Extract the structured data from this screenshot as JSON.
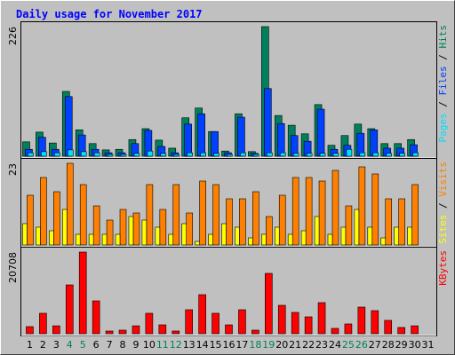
{
  "legend_separator": " / ",
  "chart_data": [
    {
      "type": "bar",
      "title": "Daily usage for November 2017",
      "ylim": [
        0,
        226
      ],
      "yticks": [
        226
      ],
      "series": [
        {
          "name": "Hits",
          "color": "#00805c",
          "values": [
            25,
            42,
            23,
            113,
            46,
            22,
            11,
            12,
            29,
            48,
            28,
            14,
            67,
            84,
            43,
            9,
            74,
            8,
            226,
            71,
            54,
            39,
            90,
            19,
            36,
            56,
            48,
            22,
            22,
            29,
            null
          ]
        },
        {
          "name": "Files",
          "color": "#0040ff",
          "values": [
            12,
            33,
            12,
            104,
            37,
            12,
            6,
            6,
            22,
            45,
            17,
            6,
            56,
            74,
            43,
            6,
            68,
            5,
            118,
            57,
            36,
            26,
            82,
            12,
            19,
            40,
            46,
            14,
            14,
            20,
            null
          ]
        },
        {
          "name": "Pages",
          "color": "#00e0ff",
          "values": [
            6,
            8,
            6,
            11,
            8,
            6,
            3,
            3,
            5,
            9,
            5,
            3,
            6,
            6,
            5,
            3,
            6,
            3,
            6,
            6,
            5,
            5,
            5,
            5,
            12,
            6,
            6,
            5,
            5,
            6,
            null
          ]
        }
      ]
    },
    {
      "type": "bar",
      "ylim": [
        0,
        23
      ],
      "yticks": [
        23
      ],
      "series": [
        {
          "name": "Visits",
          "color": "#ff8000",
          "values": [
            14,
            19,
            15,
            23,
            17,
            11,
            7,
            10,
            9,
            17,
            10,
            17,
            9,
            18,
            17,
            13,
            13,
            15,
            8,
            14,
            19,
            19,
            18,
            21,
            11,
            22,
            20,
            13,
            13,
            17,
            null
          ]
        },
        {
          "name": "Sites",
          "color": "#ffff00",
          "values": [
            6,
            5,
            4,
            10,
            3,
            3,
            3,
            3,
            8,
            7,
            5,
            3,
            6,
            1,
            3,
            6,
            5,
            2,
            3,
            5,
            3,
            4,
            8,
            3,
            5,
            10,
            5,
            2,
            5,
            5,
            null
          ]
        }
      ]
    },
    {
      "type": "bar",
      "ylim": [
        0,
        20708
      ],
      "yticks": [
        20708
      ],
      "categories": [
        "1",
        "2",
        "3",
        "4",
        "5",
        "6",
        "7",
        "8",
        "9",
        "10",
        "11",
        "12",
        "13",
        "14",
        "15",
        "16",
        "17",
        "18",
        "19",
        "20",
        "21",
        "22",
        "23",
        "24",
        "25",
        "26",
        "27",
        "28",
        "29",
        "30",
        "31"
      ],
      "category_colors": [
        "#000000",
        "#000000",
        "#000000",
        "#00805c",
        "#00805c",
        "#000000",
        "#000000",
        "#000000",
        "#000000",
        "#000000",
        "#00805c",
        "#00805c",
        "#000000",
        "#000000",
        "#000000",
        "#000000",
        "#000000",
        "#00805c",
        "#00805c",
        "#000000",
        "#000000",
        "#000000",
        "#000000",
        "#000000",
        "#00805c",
        "#00805c",
        "#000000",
        "#000000",
        "#000000",
        "#000000",
        "#000000"
      ],
      "series": [
        {
          "name": "KBytes",
          "color": "#ff0000",
          "values": [
            1800,
            5180,
            2000,
            12380,
            20708,
            8330,
            680,
            900,
            2000,
            5180,
            2250,
            680,
            6080,
            9900,
            5180,
            2250,
            6080,
            900,
            15300,
            7200,
            5400,
            4280,
            7880,
            1350,
            2480,
            6750,
            5850,
            3380,
            1580,
            2000,
            null
          ]
        }
      ]
    }
  ]
}
